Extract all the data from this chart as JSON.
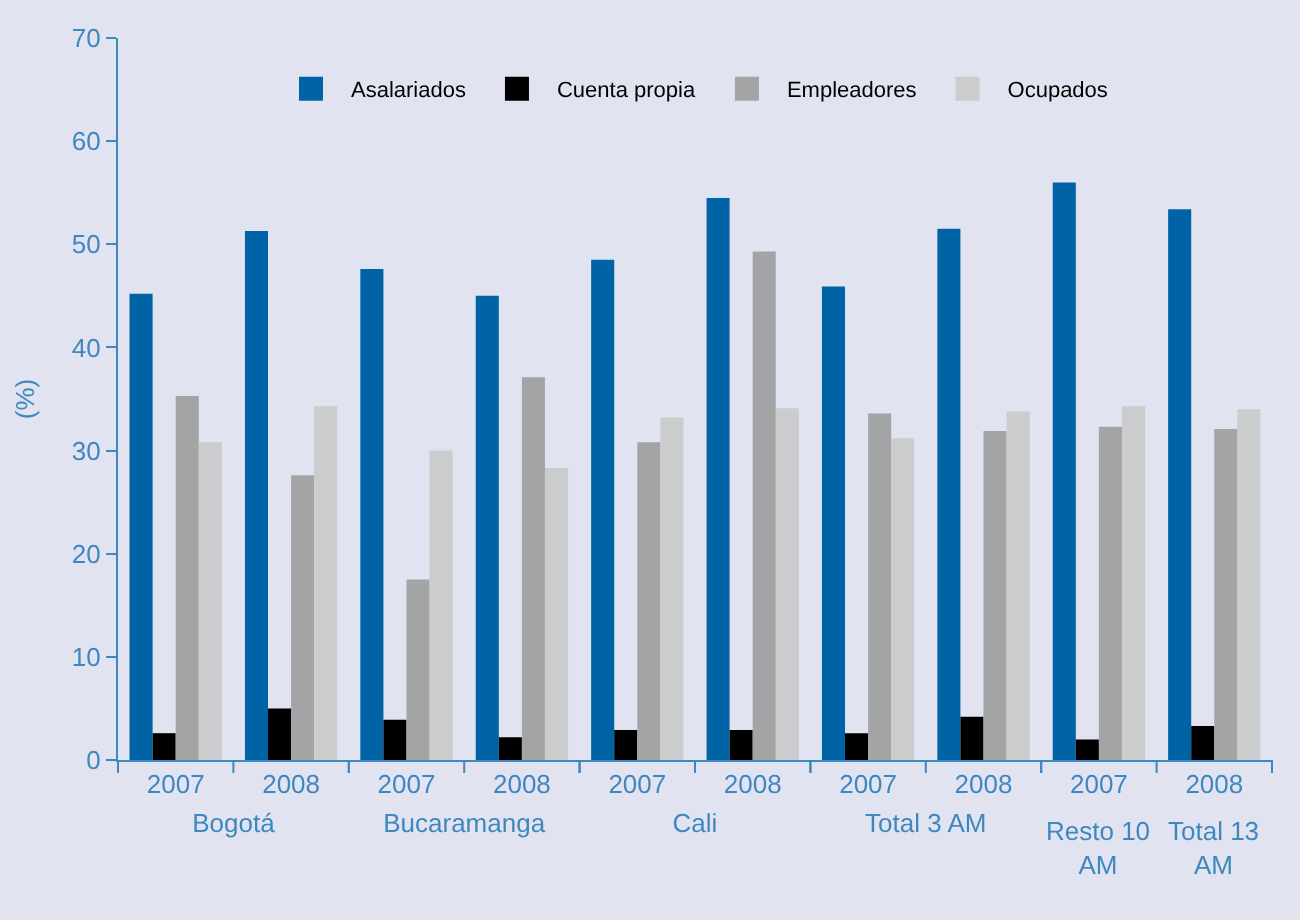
{
  "chart_data": [
    {
      "type": "bar",
      "ylabel": "(%)",
      "xlabel": "Bogotá",
      "categories": [
        "2007",
        "2008"
      ],
      "ylim": [
        0,
        70
      ],
      "yticks": [
        0,
        10,
        20,
        30,
        40,
        50,
        60,
        70
      ],
      "legend": "top",
      "series": [
        {
          "name": "Asalariados",
          "color": "#0063a6",
          "values": [
            45.2,
            51.3
          ]
        },
        {
          "name": "Cuenta propia",
          "color": "#000000",
          "values": [
            2.6,
            5.0
          ]
        },
        {
          "name": "Empleadores",
          "color": "#a3a4a6",
          "values": [
            35.3,
            27.6
          ]
        },
        {
          "name": "Ocupados",
          "color": "#cbccce",
          "values": [
            30.8,
            34.3
          ]
        }
      ]
    },
    {
      "type": "bar",
      "xlabel": "Bucaramanga",
      "categories": [
        "2007",
        "2008"
      ],
      "ylim": [
        0,
        70
      ],
      "yticks": [
        0,
        10,
        20,
        30,
        40,
        50,
        60,
        70
      ],
      "tick_labels": "x",
      "series": [
        {
          "color": "#0063a6",
          "values": [
            47.6,
            45.0
          ]
        },
        {
          "color": "#000000",
          "values": [
            3.9,
            2.2
          ]
        },
        {
          "color": "#a3a4a6",
          "values": [
            17.5,
            37.1
          ]
        },
        {
          "color": "#cbccce",
          "values": [
            30.0,
            28.3
          ]
        }
      ]
    },
    {
      "type": "bar",
      "xlabel": "Cali",
      "categories": [
        "2007",
        "2008"
      ],
      "ylim": [
        0,
        70
      ],
      "yticks": [
        0,
        10,
        20,
        30,
        40,
        50,
        60,
        70
      ],
      "tick_labels": "x",
      "series": [
        {
          "color": "#0063a6",
          "values": [
            48.5,
            54.5
          ]
        },
        {
          "color": "#000000",
          "values": [
            2.9,
            2.9
          ]
        },
        {
          "color": "#a3a4a6",
          "values": [
            30.8,
            49.3
          ]
        },
        {
          "color": "#cbccce",
          "values": [
            33.2,
            34.1
          ]
        }
      ]
    },
    {
      "type": "bar",
      "xlabel": "Total 3 AM",
      "categories": [
        "2007",
        "2008"
      ],
      "ylim": [
        0,
        70
      ],
      "yticks": [
        0,
        10,
        20,
        30,
        40,
        50,
        60,
        70
      ],
      "tick_labels": "x",
      "series": [
        {
          "color": "#0063a6",
          "values": [
            45.9,
            51.5
          ]
        },
        {
          "color": "#000000",
          "values": [
            2.6,
            4.2
          ]
        },
        {
          "color": "#a3a4a6",
          "values": [
            33.6,
            31.9
          ]
        },
        {
          "color": "#cbccce",
          "values": [
            31.2,
            33.8
          ]
        }
      ]
    },
    {
      "type": "bar",
      "categories": [
        "2007",
        "2008"
      ],
      "ylim": [
        0,
        70
      ],
      "yticks": [
        0,
        10,
        20,
        30,
        40,
        50,
        60,
        70
      ],
      "tick_labels": "x",
      "annotations": [
        "Resto 10 AM",
        "Total 13 AM"
      ],
      "series": [
        {
          "color": "#0063a6",
          "values": [
            56.0,
            53.4
          ]
        },
        {
          "color": "#000000",
          "values": [
            2.0,
            3.3
          ]
        },
        {
          "color": "#a3a4a6",
          "values": [
            32.3,
            32.1
          ]
        },
        {
          "color": "#cbccce",
          "values": [
            34.3,
            34.0
          ]
        }
      ]
    }
  ]
}
